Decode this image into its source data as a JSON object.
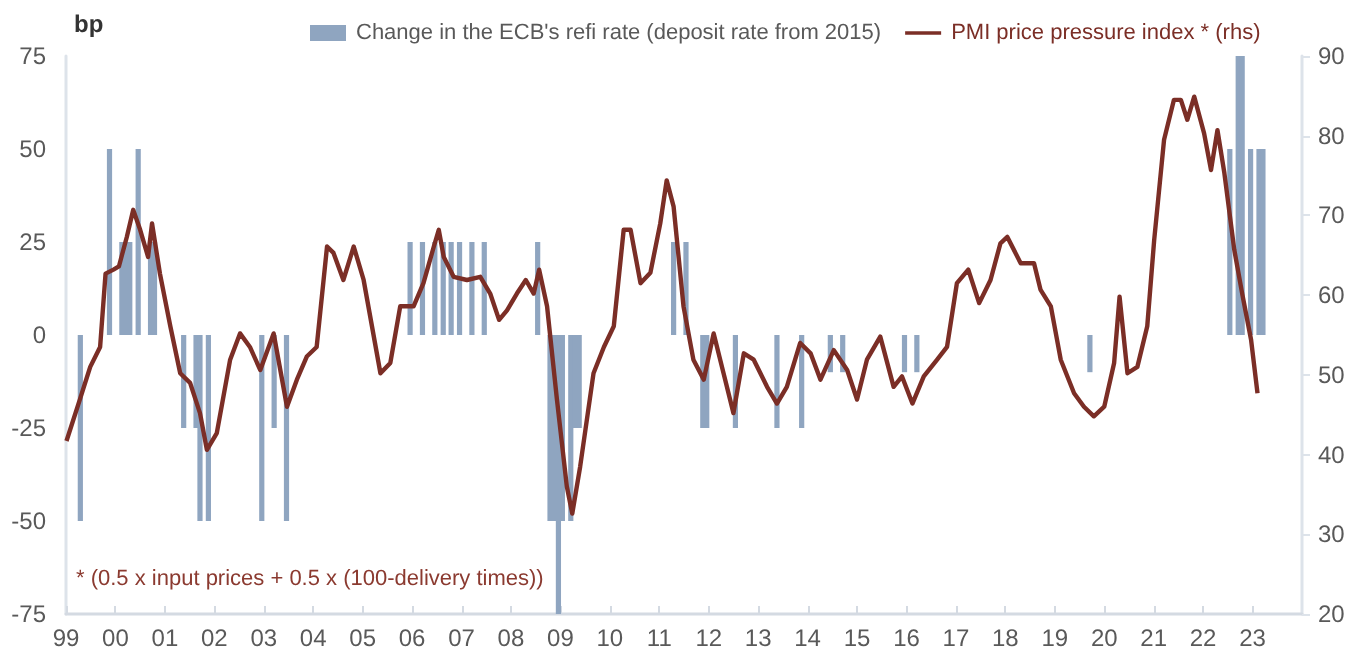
{
  "chart_data": {
    "type": "bar",
    "ylabel": "bp",
    "legend": "top",
    "grid": false,
    "xlim": [
      1999,
      2024
    ],
    "xticks": [
      {
        "value": 1999,
        "label": "99"
      },
      {
        "value": 2000,
        "label": "00"
      },
      {
        "value": 2001,
        "label": "01"
      },
      {
        "value": 2002,
        "label": "02"
      },
      {
        "value": 2003,
        "label": "03"
      },
      {
        "value": 2004,
        "label": "04"
      },
      {
        "value": 2005,
        "label": "05"
      },
      {
        "value": 2006,
        "label": "06"
      },
      {
        "value": 2007,
        "label": "07"
      },
      {
        "value": 2008,
        "label": "08"
      },
      {
        "value": 2009,
        "label": "09"
      },
      {
        "value": 2010,
        "label": "10"
      },
      {
        "value": 2011,
        "label": "11"
      },
      {
        "value": 2012,
        "label": "12"
      },
      {
        "value": 2013,
        "label": "13"
      },
      {
        "value": 2014,
        "label": "14"
      },
      {
        "value": 2015,
        "label": "15"
      },
      {
        "value": 2016,
        "label": "16"
      },
      {
        "value": 2017,
        "label": "17"
      },
      {
        "value": 2018,
        "label": "18"
      },
      {
        "value": 2019,
        "label": "19"
      },
      {
        "value": 2020,
        "label": "20"
      },
      {
        "value": 2021,
        "label": "21"
      },
      {
        "value": 2022,
        "label": "22"
      },
      {
        "value": 2023,
        "label": "23"
      }
    ],
    "ylim": [
      -75,
      75
    ],
    "yticks": [
      -75,
      -50,
      -25,
      0,
      25,
      50,
      75
    ],
    "y2lim": [
      20,
      90
    ],
    "y2ticks": [
      20,
      30,
      40,
      50,
      60,
      70,
      80,
      90
    ],
    "annotations": [
      "* (0.5 x input prices + 0.5 x (100-delivery times))"
    ],
    "series": [
      {
        "name": "Change in the ECB's refi rate (deposit rate from 2015)",
        "color": "#8fa5c0",
        "x": [
          1999.29,
          1999.88,
          2000.13,
          2000.21,
          2000.29,
          2000.46,
          2000.71,
          2000.79,
          2001.38,
          2001.63,
          2001.71,
          2001.88,
          2002.96,
          2003.21,
          2003.46,
          2005.96,
          2006.21,
          2006.46,
          2006.63,
          2006.79,
          2006.96,
          2007.21,
          2007.46,
          2008.54,
          2008.79,
          2008.88,
          2008.96,
          2009.04,
          2009.21,
          2009.29,
          2009.38,
          2011.29,
          2011.54,
          2011.88,
          2011.96,
          2012.54,
          2013.38,
          2013.88,
          2014.46,
          2014.71,
          2015.96,
          2016.21,
          2019.71,
          2022.54,
          2022.71,
          2022.79,
          2022.96,
          2023.13,
          2023.21
        ],
        "values": [
          -50,
          50,
          25,
          25,
          25,
          50,
          25,
          25,
          -25,
          -25,
          -50,
          -50,
          -50,
          -25,
          -50,
          25,
          25,
          25,
          25,
          25,
          25,
          25,
          25,
          25,
          -50,
          -50,
          -75,
          -50,
          -50,
          -25,
          -25,
          25,
          25,
          -25,
          -25,
          -25,
          -25,
          -25,
          -10,
          -10,
          -10,
          -10,
          -10,
          50,
          75,
          75,
          50,
          50,
          50
        ]
      },
      {
        "type": "line",
        "name": "PMI price pressure index * (rhs)",
        "color": "#7b2e26",
        "axis": "y2",
        "marker": "none",
        "x": [
          1999.01,
          1999.28,
          1999.49,
          1999.69,
          1999.8,
          1999.96,
          2000.07,
          2000.23,
          2000.36,
          2000.5,
          2000.66,
          2000.74,
          2000.9,
          2001.11,
          2001.31,
          2001.51,
          2001.71,
          2001.85,
          2002.05,
          2002.32,
          2002.52,
          2002.72,
          2002.93,
          2003.2,
          2003.47,
          2003.67,
          2003.87,
          2004.07,
          2004.28,
          2004.41,
          2004.61,
          2004.82,
          2005.02,
          2005.36,
          2005.56,
          2005.76,
          2006.03,
          2006.23,
          2006.44,
          2006.54,
          2006.64,
          2006.84,
          2007.11,
          2007.38,
          2007.58,
          2007.76,
          2007.92,
          2008.12,
          2008.3,
          2008.46,
          2008.57,
          2008.73,
          2008.93,
          2009.13,
          2009.24,
          2009.4,
          2009.67,
          2009.88,
          2010.08,
          2010.28,
          2010.42,
          2010.62,
          2010.82,
          2011.02,
          2011.15,
          2011.29,
          2011.49,
          2011.69,
          2011.9,
          2012.1,
          2012.3,
          2012.5,
          2012.71,
          2012.91,
          2013.18,
          2013.38,
          2013.58,
          2013.85,
          2014.06,
          2014.26,
          2014.53,
          2014.8,
          2015.0,
          2015.2,
          2015.47,
          2015.74,
          2015.91,
          2016.12,
          2016.35,
          2016.62,
          2016.82,
          2017.02,
          2017.25,
          2017.47,
          2017.7,
          2017.9,
          2018.04,
          2018.31,
          2018.58,
          2018.71,
          2018.92,
          2019.12,
          2019.39,
          2019.59,
          2019.79,
          2020.0,
          2020.2,
          2020.31,
          2020.47,
          2020.67,
          2020.87,
          2021.01,
          2021.21,
          2021.41,
          2021.55,
          2021.68,
          2021.82,
          2022.02,
          2022.16,
          2022.29,
          2022.43,
          2022.63,
          2022.79,
          2022.97,
          2023.1
        ],
        "values": [
          41.7,
          46.9,
          51.0,
          53.5,
          62.7,
          63.2,
          63.6,
          67.3,
          70.7,
          68.2,
          64.8,
          69.0,
          62.7,
          56.1,
          50.2,
          49.0,
          45.2,
          40.6,
          42.7,
          51.9,
          55.2,
          53.5,
          50.6,
          55.2,
          46.0,
          49.4,
          52.3,
          53.5,
          66.1,
          65.3,
          61.9,
          66.1,
          61.9,
          50.2,
          51.5,
          58.6,
          58.6,
          61.5,
          66.1,
          68.2,
          64.8,
          62.3,
          61.9,
          62.3,
          60.2,
          56.9,
          58.1,
          60.2,
          61.9,
          60.2,
          63.2,
          58.6,
          46.9,
          36.0,
          32.6,
          38.5,
          50.2,
          53.5,
          56.1,
          68.2,
          68.2,
          61.5,
          62.8,
          69.0,
          74.4,
          71.1,
          58.6,
          51.9,
          49.4,
          55.2,
          50.2,
          45.2,
          52.7,
          51.9,
          48.5,
          46.4,
          48.5,
          54.0,
          52.7,
          49.4,
          53.1,
          50.6,
          46.9,
          51.9,
          54.8,
          48.5,
          49.8,
          46.4,
          49.8,
          51.9,
          53.5,
          61.5,
          63.2,
          59.0,
          61.9,
          66.5,
          67.3,
          64.0,
          64.0,
          60.7,
          58.6,
          51.9,
          47.7,
          46.0,
          44.8,
          46.0,
          51.5,
          59.8,
          50.2,
          51.0,
          56.1,
          66.9,
          79.5,
          84.5,
          84.5,
          82.0,
          84.9,
          80.3,
          75.7,
          80.7,
          75.3,
          65.7,
          60.2,
          54.4,
          47.7
        ]
      }
    ]
  }
}
